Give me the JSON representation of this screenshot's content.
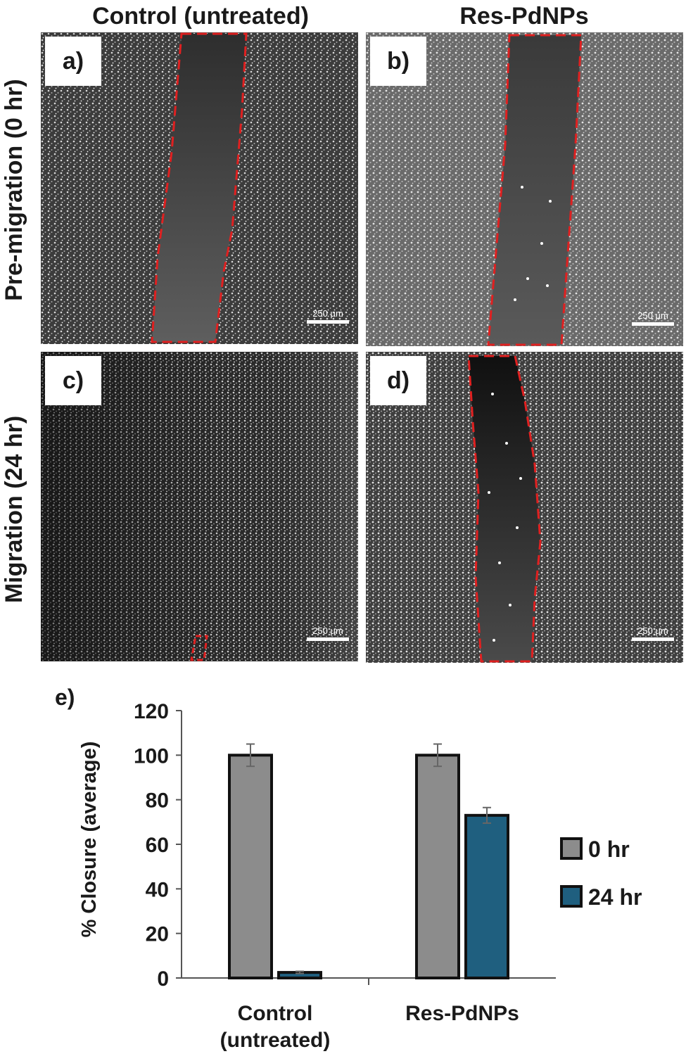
{
  "columns": [
    "Control (untreated)",
    "Res-PdNPs"
  ],
  "rows": [
    "Pre-migration (0 hr)",
    "Migration (24 hr)"
  ],
  "panels": [
    {
      "label": "a)",
      "scale_bar": "250 µm"
    },
    {
      "label": "b)",
      "scale_bar": "250 µm"
    },
    {
      "label": "c)",
      "scale_bar": "250 µm"
    },
    {
      "label": "d)",
      "scale_bar": "250 µm"
    }
  ],
  "chart_label": "e)",
  "chart_data": {
    "type": "bar",
    "categories": [
      "Control\n(untreated)",
      "Res-PdNPs"
    ],
    "series": [
      {
        "name": "0 hr",
        "color": "#8c8c8c",
        "values": [
          100,
          100
        ],
        "errors": [
          5,
          5
        ]
      },
      {
        "name": "24 hr",
        "color": "#1f5f7f",
        "values": [
          2.5,
          73
        ],
        "errors": [
          0.5,
          3.5
        ]
      }
    ],
    "ylabel": "% Closure  (average)",
    "ylim": [
      0,
      120
    ],
    "yticks": [
      0,
      20,
      40,
      60,
      80,
      100,
      120
    ],
    "grid": false,
    "legend": "right"
  }
}
